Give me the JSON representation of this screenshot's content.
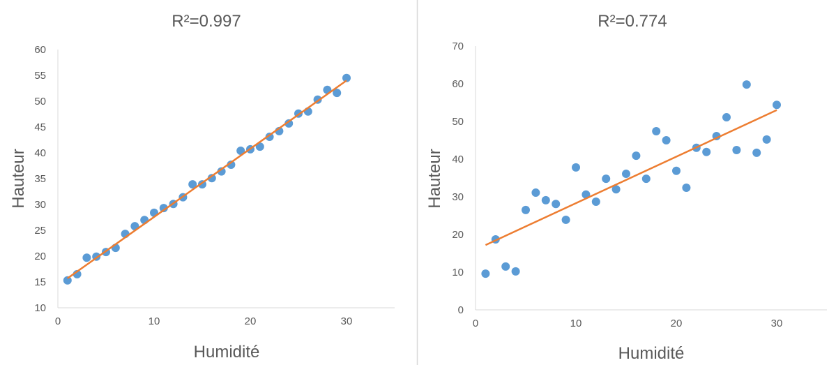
{
  "chart_data": [
    {
      "type": "scatter",
      "title": "R²=0.997",
      "xlabel": "Humidité",
      "ylabel": "Hauteur",
      "xlim": [
        0,
        35
      ],
      "ylim": [
        10,
        60
      ],
      "xticks": [
        0,
        10,
        20,
        30
      ],
      "yticks": [
        10,
        15,
        20,
        25,
        30,
        35,
        40,
        45,
        50,
        55,
        60
      ],
      "grid": false,
      "x": [
        1,
        2,
        3,
        4,
        5,
        6,
        7,
        8,
        9,
        10,
        11,
        12,
        13,
        14,
        15,
        16,
        17,
        18,
        19,
        20,
        21,
        22,
        23,
        24,
        25,
        26,
        27,
        28,
        29,
        30
      ],
      "y": [
        15.3,
        16.5,
        19.7,
        19.9,
        20.8,
        21.6,
        24.3,
        25.8,
        27.0,
        28.4,
        29.3,
        30.1,
        31.4,
        33.9,
        33.9,
        35.1,
        36.4,
        37.7,
        40.4,
        40.7,
        41.2,
        43.1,
        44.2,
        45.7,
        47.6,
        48.0,
        50.3,
        52.2,
        51.6,
        54.5
      ],
      "trendline": {
        "x": [
          1,
          30
        ],
        "y": [
          15.7,
          54.0
        ]
      },
      "colors": {
        "points": "#5B9BD5",
        "trendline": "#ED7D31"
      }
    },
    {
      "type": "scatter",
      "title": "R²=0.774",
      "xlabel": "Humidité",
      "ylabel": "Hauteur",
      "xlim": [
        0,
        35
      ],
      "ylim": [
        0,
        70
      ],
      "xticks": [
        0,
        10,
        20,
        30
      ],
      "yticks": [
        0,
        10,
        20,
        30,
        40,
        50,
        60,
        70
      ],
      "grid": false,
      "x": [
        1,
        2,
        3,
        4,
        5,
        6,
        7,
        8,
        9,
        10,
        11,
        12,
        13,
        14,
        15,
        16,
        17,
        18,
        19,
        20,
        21,
        22,
        23,
        24,
        25,
        26,
        27,
        28,
        29,
        30
      ],
      "y": [
        9.6,
        18.7,
        11.5,
        10.2,
        26.5,
        31.1,
        29.1,
        28.1,
        23.9,
        37.8,
        30.6,
        28.7,
        34.8,
        32.0,
        36.1,
        40.9,
        34.8,
        47.4,
        45.0,
        36.9,
        32.4,
        43.0,
        41.9,
        46.1,
        51.1,
        42.4,
        59.8,
        41.7,
        45.2,
        54.4
      ],
      "trendline": {
        "x": [
          1,
          30
        ],
        "y": [
          17.2,
          53.0
        ]
      },
      "colors": {
        "points": "#5B9BD5",
        "trendline": "#ED7D31"
      }
    }
  ]
}
